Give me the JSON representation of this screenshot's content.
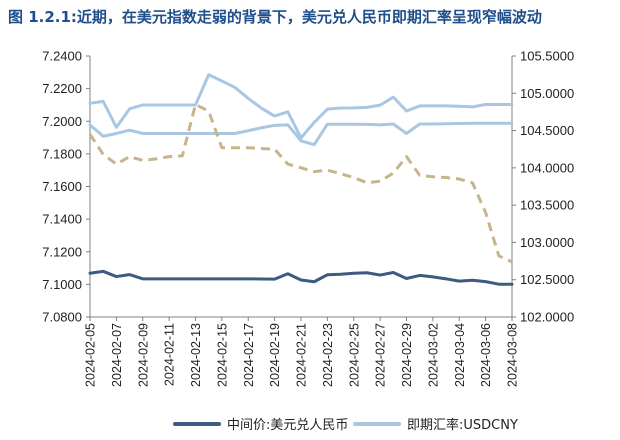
{
  "chart_data": {
    "type": "line",
    "title": "图 1.2.1:近期，在美元指数走弱的背景下，美元兑人民币即期汇率呈现窄幅波动",
    "x": [
      "2024-02-05",
      "2024-02-06",
      "2024-02-07",
      "2024-02-08",
      "2024-02-09",
      "2024-02-10",
      "2024-02-11",
      "2024-02-12",
      "2024-02-13",
      "2024-02-14",
      "2024-02-15",
      "2024-02-16",
      "2024-02-17",
      "2024-02-18",
      "2024-02-19",
      "2024-02-20",
      "2024-02-21",
      "2024-02-22",
      "2024-02-23",
      "2024-02-24",
      "2024-02-25",
      "2024-02-26",
      "2024-02-27",
      "2024-02-28",
      "2024-02-29",
      "2024-03-01",
      "2024-03-02",
      "2024-03-03",
      "2024-03-04",
      "2024-03-05",
      "2024-03-06",
      "2024-03-07",
      "2024-03-08"
    ],
    "xticks": [
      "2024-02-05",
      "2024-02-07",
      "2024-02-09",
      "2024-02-11",
      "2024-02-13",
      "2024-02-15",
      "2024-02-17",
      "2024-02-19",
      "2024-02-21",
      "2024-02-23",
      "2024-02-25",
      "2024-02-27",
      "2024-02-29",
      "2024-03-02",
      "2024-03-04",
      "2024-03-06",
      "2024-03-08"
    ],
    "y_left": {
      "ylim": [
        7.08,
        7.24
      ],
      "ticks": [
        "7.0800",
        "7.1000",
        "7.1200",
        "7.1400",
        "7.1600",
        "7.1800",
        "7.2000",
        "7.2200",
        "7.2400"
      ]
    },
    "y_right": {
      "ylim": [
        102.0,
        105.5
      ],
      "ticks": [
        "102.0000",
        "102.5000",
        "103.0000",
        "103.5000",
        "104.0000",
        "104.5000",
        "105.0000",
        "105.5000"
      ]
    },
    "grid": false,
    "legend_position": "bottom",
    "series": [
      {
        "name": "中间价:美元兑人民币",
        "axis": "left",
        "color": "#3d5a80",
        "style": "solid",
        "values": [
          7.1068,
          7.108,
          7.1048,
          7.106,
          7.1034,
          7.1034,
          7.1034,
          7.1034,
          7.1034,
          7.1034,
          7.1034,
          7.1034,
          7.1034,
          7.1033,
          7.1032,
          7.1065,
          7.1027,
          7.1016,
          7.1059,
          7.1062,
          7.1068,
          7.1071,
          7.1057,
          7.1073,
          7.1036,
          7.1055,
          7.1046,
          7.1034,
          7.102,
          7.1025,
          7.1017,
          7.1001,
          7.1001
        ]
      },
      {
        "name": "即期汇率:USDCNY",
        "axis": "left",
        "color": "#a9c6e3",
        "style": "solid",
        "values": [
          7.211,
          7.2122,
          7.1963,
          7.2076,
          7.21,
          7.21,
          7.21,
          7.21,
          7.21,
          7.2285,
          7.2247,
          7.2207,
          7.214,
          7.208,
          7.2032,
          7.2058,
          7.1898,
          7.1993,
          7.2074,
          7.2081,
          7.2082,
          7.2085,
          7.2099,
          7.2148,
          7.2063,
          7.2094,
          7.2094,
          7.2094,
          7.2092,
          7.2088,
          7.2103,
          7.2103,
          7.2103
        ]
      },
      {
        "name": "",
        "axis": "left",
        "color": "#a9c6e3",
        "style": "solid",
        "values": [
          7.1978,
          7.1908,
          7.1925,
          7.1945,
          7.1925,
          7.1925,
          7.1925,
          7.1925,
          7.1925,
          7.1925,
          7.1925,
          7.1925,
          7.1942,
          7.196,
          7.1975,
          7.1978,
          7.188,
          7.1856,
          7.1982,
          7.1982,
          7.1982,
          7.1981,
          7.1978,
          7.1983,
          7.1925,
          7.1983,
          7.1983,
          7.1985,
          7.1986,
          7.1988,
          7.1988,
          7.1988,
          7.1988
        ]
      },
      {
        "name": "",
        "axis": "right",
        "color": "#c8b48c",
        "style": "dashed",
        "values": [
          104.45,
          104.18,
          104.05,
          104.15,
          104.1,
          104.12,
          104.15,
          104.16,
          104.85,
          104.76,
          104.27,
          104.27,
          104.27,
          104.26,
          104.25,
          104.05,
          104.0,
          103.95,
          103.97,
          103.92,
          103.87,
          103.8,
          103.82,
          103.93,
          104.15,
          103.9,
          103.88,
          103.87,
          103.85,
          103.8,
          103.4,
          102.82,
          102.74
        ]
      }
    ]
  }
}
